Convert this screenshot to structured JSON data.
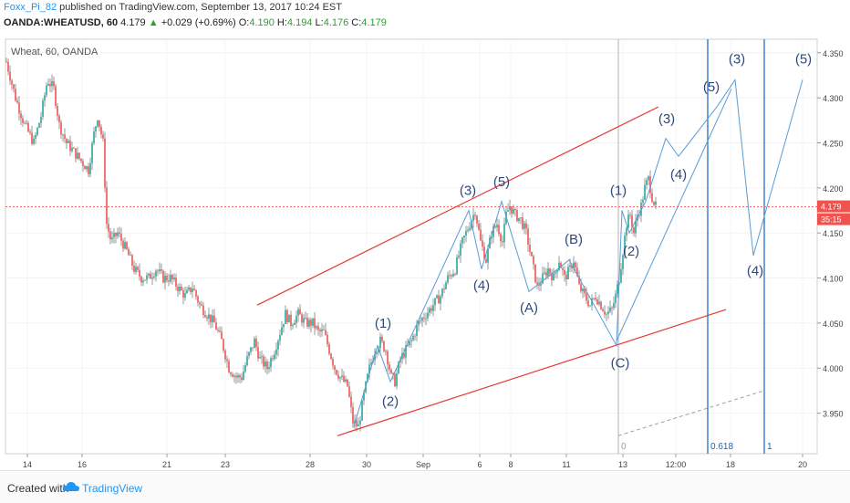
{
  "header": {
    "author": "Foxx_Pi_82",
    "published": "published on TradingView.com, September 13, 2017 10:24 EST"
  },
  "quote": {
    "symbol": "OANDA:WHEATUSD, 60",
    "last": "4.179",
    "arrow": "▲",
    "change": "+0.029 (+0.69%)",
    "o_label": "O:",
    "o": "4.190",
    "h_label": "H:",
    "h": "4.194",
    "l_label": "L:",
    "l": "4.176",
    "c_label": "C:",
    "c": "4.179"
  },
  "footer": {
    "created_with": "Created with",
    "brand": "TradingView"
  },
  "colors": {
    "up": "#26a69a",
    "down": "#ef5350",
    "channel": "#e53935",
    "wave": "#5b9bd5",
    "fib": "#1565c0",
    "label": "#2f4a7a"
  },
  "chart_data": {
    "type": "candlestick",
    "instrument_label": "Wheat, 60, OANDA",
    "ylim": [
      3.905,
      4.365
    ],
    "y_ticks": [
      "4.350",
      "4.300",
      "4.250",
      "4.200",
      "4.150",
      "4.100",
      "4.050",
      "4.000",
      "3.950"
    ],
    "x_ticks": [
      "14",
      "16",
      "21",
      "23",
      "28",
      "30",
      "Sep",
      "6",
      "8",
      "11",
      "13",
      "12:00",
      "18",
      "20"
    ],
    "last_price_label": "4.179",
    "countdown_label": "35:15",
    "last_price": 4.179,
    "price_path": [
      [
        0,
        4.34
      ],
      [
        10,
        4.3
      ],
      [
        20,
        4.27
      ],
      [
        30,
        4.25
      ],
      [
        38,
        4.28
      ],
      [
        45,
        4.32
      ],
      [
        52,
        4.31
      ],
      [
        58,
        4.27
      ],
      [
        66,
        4.25
      ],
      [
        74,
        4.24
      ],
      [
        82,
        4.23
      ],
      [
        90,
        4.22
      ],
      [
        96,
        4.26
      ],
      [
        100,
        4.28
      ],
      [
        106,
        4.25
      ],
      [
        110,
        4.16
      ],
      [
        115,
        4.14
      ],
      [
        122,
        4.15
      ],
      [
        132,
        4.13
      ],
      [
        140,
        4.11
      ],
      [
        148,
        4.1
      ],
      [
        156,
        4.1
      ],
      [
        164,
        4.11
      ],
      [
        172,
        4.1
      ],
      [
        180,
        4.1
      ],
      [
        188,
        4.09
      ],
      [
        196,
        4.08
      ],
      [
        204,
        4.09
      ],
      [
        212,
        4.07
      ],
      [
        220,
        4.06
      ],
      [
        228,
        4.05
      ],
      [
        236,
        4.03
      ],
      [
        244,
        4.0
      ],
      [
        252,
        3.99
      ],
      [
        258,
        3.99
      ],
      [
        264,
        4.01
      ],
      [
        272,
        4.03
      ],
      [
        278,
        4.01
      ],
      [
        286,
        4.0
      ],
      [
        294,
        4.02
      ],
      [
        300,
        4.04
      ],
      [
        306,
        4.06
      ],
      [
        312,
        4.05
      ],
      [
        320,
        4.06
      ],
      [
        328,
        4.05
      ],
      [
        336,
        4.05
      ],
      [
        342,
        4.04
      ],
      [
        348,
        4.04
      ],
      [
        354,
        4.02
      ],
      [
        360,
        4.0
      ],
      [
        366,
        3.99
      ],
      [
        374,
        3.98
      ],
      [
        380,
        3.94
      ],
      [
        386,
        3.935
      ],
      [
        392,
        3.97
      ],
      [
        398,
        4.0
      ],
      [
        404,
        4.02
      ],
      [
        410,
        4.03
      ],
      [
        416,
        4.02
      ],
      [
        422,
        3.99
      ],
      [
        426,
        3.985
      ],
      [
        432,
        4.01
      ],
      [
        438,
        4.02
      ],
      [
        444,
        4.03
      ],
      [
        452,
        4.05
      ],
      [
        460,
        4.06
      ],
      [
        468,
        4.07
      ],
      [
        476,
        4.08
      ],
      [
        484,
        4.1
      ],
      [
        492,
        4.11
      ],
      [
        500,
        4.14
      ],
      [
        508,
        4.16
      ],
      [
        514,
        4.175
      ],
      [
        520,
        4.14
      ],
      [
        526,
        4.12
      ],
      [
        532,
        4.15
      ],
      [
        538,
        4.16
      ],
      [
        544,
        4.14
      ],
      [
        548,
        4.17
      ],
      [
        552,
        4.18
      ],
      [
        558,
        4.17
      ],
      [
        564,
        4.165
      ],
      [
        570,
        4.15
      ],
      [
        576,
        4.12
      ],
      [
        582,
        4.09
      ],
      [
        588,
        4.1
      ],
      [
        594,
        4.11
      ],
      [
        600,
        4.1
      ],
      [
        606,
        4.12
      ],
      [
        612,
        4.1
      ],
      [
        618,
        4.11
      ],
      [
        622,
        4.12
      ],
      [
        628,
        4.09
      ],
      [
        634,
        4.08
      ],
      [
        640,
        4.07
      ],
      [
        646,
        4.08
      ],
      [
        652,
        4.07
      ],
      [
        658,
        4.06
      ],
      [
        664,
        4.065
      ],
      [
        668,
        4.08
      ],
      [
        672,
        4.1
      ],
      [
        676,
        4.13
      ],
      [
        680,
        4.16
      ],
      [
        684,
        4.17
      ],
      [
        688,
        4.15
      ],
      [
        692,
        4.17
      ],
      [
        696,
        4.18
      ],
      [
        700,
        4.2
      ],
      [
        704,
        4.21
      ],
      [
        708,
        4.19
      ],
      [
        712,
        4.179
      ]
    ],
    "channel_upper": [
      [
        282,
        4.07
      ],
      [
        722,
        4.29
      ]
    ],
    "channel_lower": [
      [
        370,
        3.925
      ],
      [
        796,
        4.065
      ]
    ],
    "dashed_projection": [
      [
        678,
        3.925
      ],
      [
        838,
        3.975
      ]
    ],
    "wave_path": [
      [
        388,
        3.935
      ],
      [
        414,
        4.025
      ],
      [
        428,
        3.985
      ],
      [
        514,
        4.175
      ],
      [
        528,
        4.11
      ],
      [
        550,
        4.185
      ],
      [
        580,
        4.085
      ],
      [
        624,
        4.12
      ],
      [
        676,
        4.025
      ],
      [
        682,
        4.175
      ],
      [
        690,
        4.15
      ],
      [
        708,
        4.185
      ],
      [
        730,
        4.255
      ],
      [
        744,
        4.235
      ],
      [
        786,
        4.29
      ],
      [
        806,
        4.32
      ],
      [
        826,
        4.125
      ],
      [
        880,
        4.32
      ]
    ],
    "wave_from_low": [
      [
        676,
        4.03
      ],
      [
        802,
        4.31
      ]
    ],
    "wave_labels": [
      {
        "text": "(1)",
        "x": 420,
        "y": 4.045
      },
      {
        "text": "(2)",
        "x": 428,
        "y": 3.958
      },
      {
        "text": "(3)",
        "x": 513,
        "y": 4.192
      },
      {
        "text": "(4)",
        "x": 528,
        "y": 4.087
      },
      {
        "text": "(5)",
        "x": 550,
        "y": 4.202
      },
      {
        "text": "(A)",
        "x": 580,
        "y": 4.062
      },
      {
        "text": "(B)",
        "x": 629,
        "y": 4.138
      },
      {
        "text": "(C)",
        "x": 680,
        "y": 4.001
      },
      {
        "text": "(1)",
        "x": 678,
        "y": 4.192
      },
      {
        "text": "(2)",
        "x": 692,
        "y": 4.125
      },
      {
        "text": "(3)",
        "x": 731,
        "y": 4.272
      },
      {
        "text": "(4)",
        "x": 744,
        "y": 4.21
      },
      {
        "text": "(5)",
        "x": 780,
        "y": 4.307
      },
      {
        "text": "(3)",
        "x": 808,
        "y": 4.338
      },
      {
        "text": "(4)",
        "x": 828,
        "y": 4.103
      },
      {
        "text": "(5)",
        "x": 881,
        "y": 4.338
      }
    ],
    "fib_lines": [
      {
        "label": "0",
        "x": 678
      },
      {
        "label": "0.618",
        "x": 776
      },
      {
        "label": "1",
        "x": 838
      }
    ]
  }
}
